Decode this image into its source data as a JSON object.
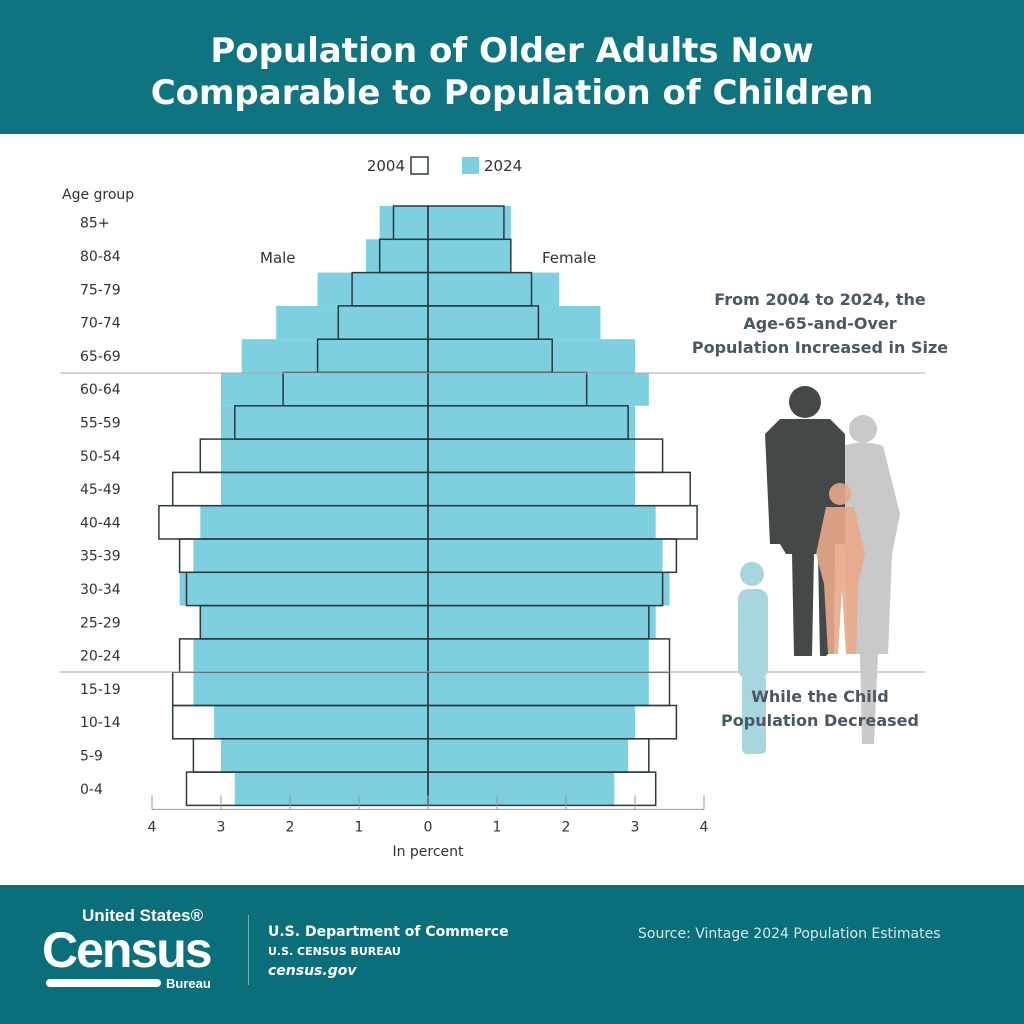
{
  "header": {
    "title_line1": "Population of Older Adults Now",
    "title_line2": "Comparable to Population of Children"
  },
  "chart_data": {
    "type": "population-pyramid",
    "title": "Population of Older Adults Now Comparable to Population of Children",
    "legend": [
      {
        "name": "2004",
        "style": "outline"
      },
      {
        "name": "2024",
        "color": "#7ecfdf"
      }
    ],
    "legend_position": "top",
    "yaxis_label": "Age group",
    "xlabel": "In percent",
    "xlim": [
      -4,
      4
    ],
    "xticks": [
      "4",
      "3",
      "2",
      "1",
      "0",
      "1",
      "2",
      "3",
      "4"
    ],
    "side_labels": {
      "left": "Male",
      "right": "Female"
    },
    "categories": [
      "85+",
      "80-84",
      "75-79",
      "70-74",
      "65-69",
      "60-64",
      "55-59",
      "50-54",
      "45-49",
      "40-44",
      "35-39",
      "30-34",
      "25-29",
      "20-24",
      "15-19",
      "10-14",
      "5-9",
      "0-4"
    ],
    "series": [
      {
        "name": "2024",
        "sex": "Male",
        "values": [
          0.7,
          0.9,
          1.6,
          2.2,
          2.7,
          3.0,
          3.0,
          3.0,
          3.0,
          3.3,
          3.4,
          3.6,
          3.3,
          3.4,
          3.4,
          3.1,
          3.0,
          2.8
        ]
      },
      {
        "name": "2024",
        "sex": "Female",
        "values": [
          1.2,
          1.2,
          1.9,
          2.5,
          3.0,
          3.2,
          3.0,
          3.0,
          3.0,
          3.3,
          3.4,
          3.5,
          3.3,
          3.2,
          3.2,
          3.0,
          2.9,
          2.7
        ]
      },
      {
        "name": "2004",
        "sex": "Male",
        "values": [
          0.5,
          0.7,
          1.1,
          1.3,
          1.6,
          2.1,
          2.8,
          3.3,
          3.7,
          3.9,
          3.6,
          3.5,
          3.3,
          3.6,
          3.7,
          3.7,
          3.4,
          3.5
        ]
      },
      {
        "name": "2004",
        "sex": "Female",
        "values": [
          1.1,
          1.2,
          1.5,
          1.6,
          1.8,
          2.3,
          2.9,
          3.4,
          3.8,
          3.9,
          3.6,
          3.4,
          3.2,
          3.5,
          3.5,
          3.6,
          3.2,
          3.3
        ]
      }
    ],
    "colors": {
      "bar_2024": "#7ecfdf",
      "outline_2004": "#2a3a40"
    },
    "annotations": [
      {
        "text": "From 2004 to 2024, the Age-65-and-Over Population Increased in Size",
        "lines": [
          "From 2004 to 2024, the",
          "Age-65-and-Over",
          "Population Increased in Size"
        ]
      },
      {
        "text": "While the Child Population Decreased",
        "lines": [
          "While the Child",
          "Population Decreased"
        ]
      }
    ]
  },
  "footer": {
    "logo": {
      "line1": "United States®",
      "line2": "Census",
      "line3": "Bureau"
    },
    "department": "U.S. Department of Commerce",
    "bureau": "U.S. CENSUS BUREAU",
    "website": "census.gov",
    "source": "Source: Vintage 2024 Population Estimates"
  },
  "colors": {
    "header_bg": "#0f7380",
    "footer_bg": "#0b6f7b"
  }
}
